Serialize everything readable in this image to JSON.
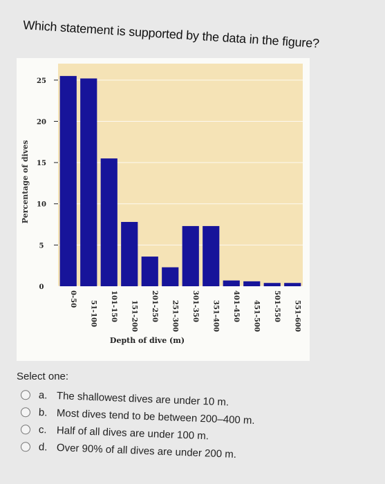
{
  "question": {
    "text": "Which statement is supported by the data in the figure?"
  },
  "chart_data": {
    "type": "bar",
    "categories": [
      "0-50",
      "51-100",
      "101-150",
      "151-200",
      "201-250",
      "251-300",
      "301-350",
      "351-400",
      "401-450",
      "451-500",
      "501-550",
      "551-600"
    ],
    "values": [
      25.5,
      25.2,
      15.5,
      7.8,
      3.6,
      2.3,
      7.3,
      7.3,
      0.7,
      0.6,
      0.4,
      0.4
    ],
    "ylabel": "Percentage of dives",
    "xlabel": "Depth of dive (m)",
    "yticks": [
      "0",
      "5",
      "10",
      "15",
      "20",
      "25"
    ],
    "ylim": [
      0,
      27
    ],
    "grid": true,
    "bar_color": "#17149a",
    "plot_background": "#f5e3b6"
  },
  "answer": {
    "select_label": "Select one:",
    "options": [
      {
        "letter": "a.",
        "text": "The shallowest dives are under 10 m."
      },
      {
        "letter": "b.",
        "text": "Most dives tend to be between 200–400 m."
      },
      {
        "letter": "c.",
        "text": "Half of all dives are under 100 m."
      },
      {
        "letter": "d.",
        "text": "Over 90% of all dives are under 200 m."
      }
    ]
  }
}
